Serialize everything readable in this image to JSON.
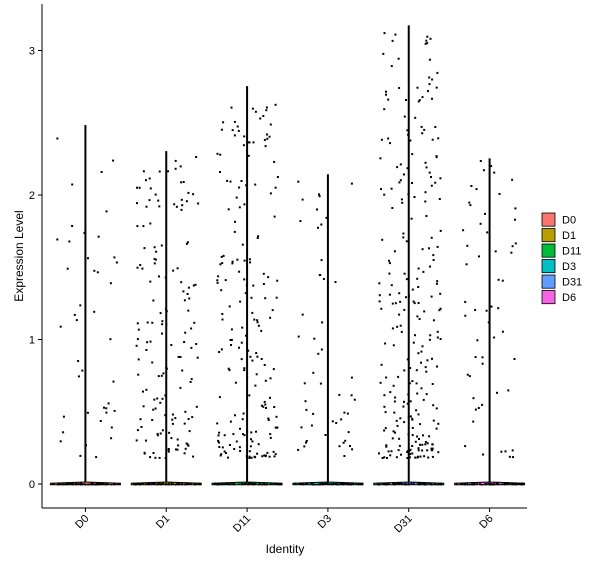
{
  "chart_data": {
    "type": "violin",
    "xlabel": "Identity",
    "ylabel": "Expression Level",
    "categories": [
      "D0",
      "D1",
      "D11",
      "D3",
      "D31",
      "D6"
    ],
    "y_ticks": [
      0,
      1,
      2,
      3
    ],
    "ylim": [
      -0.18,
      3.2
    ],
    "violin_max": [
      2.48,
      2.3,
      2.75,
      2.14,
      3.17,
      2.25
    ],
    "nonzero_points": [
      42,
      150,
      185,
      50,
      250,
      55
    ],
    "colors": [
      "#F8766D",
      "#B79F00",
      "#00BA38",
      "#00BFC4",
      "#619CFF",
      "#F564E3"
    ],
    "legend": {
      "position": "right",
      "entries": [
        "D0",
        "D1",
        "D11",
        "D3",
        "D31",
        "D6"
      ]
    },
    "grid": false
  }
}
